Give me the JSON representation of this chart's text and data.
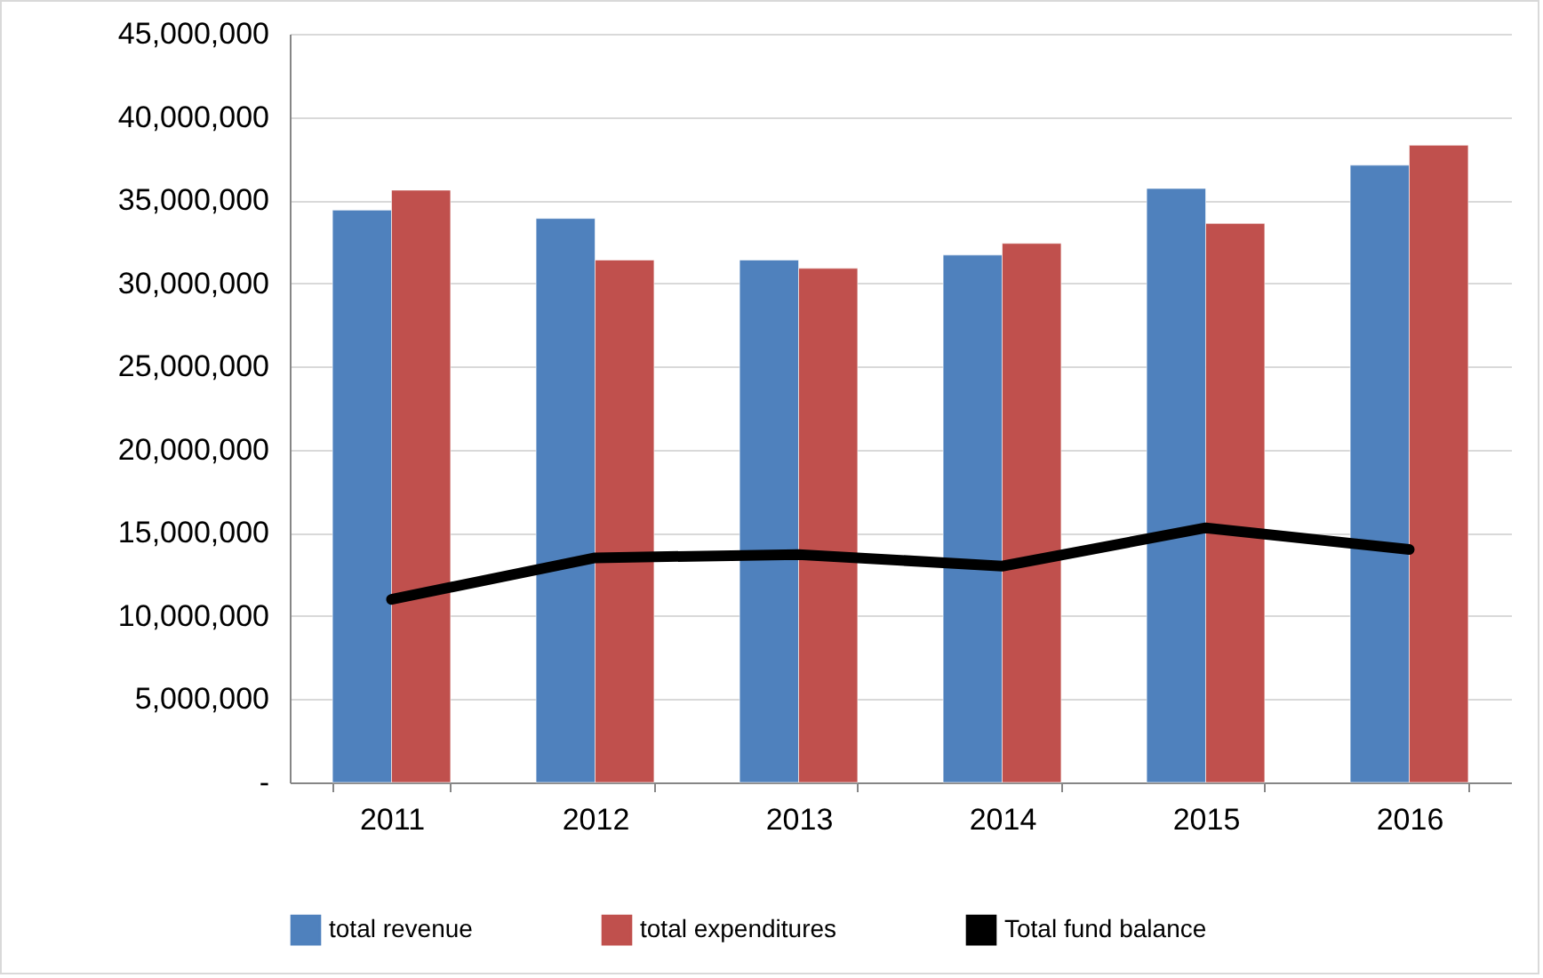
{
  "chart_data": {
    "type": "bar",
    "categories": [
      "2011",
      "2012",
      "2013",
      "2014",
      "2015",
      "2016"
    ],
    "series": [
      {
        "name": "total revenue",
        "color": "#4f81bd",
        "values": [
          34400000,
          33900000,
          31400000,
          31700000,
          35700000,
          37100000
        ]
      },
      {
        "name": "total expenditures",
        "color": "#c0504d",
        "values": [
          35600000,
          31400000,
          30900000,
          32400000,
          33600000,
          38300000
        ]
      },
      {
        "name": "Total fund balance",
        "type": "line",
        "color": "#000000",
        "values": [
          11000000,
          13500000,
          13700000,
          13000000,
          15300000,
          14000000
        ]
      }
    ],
    "ylim": [
      0,
      45000000
    ],
    "yticks": [
      {
        "value": 0,
        "label": "-"
      },
      {
        "value": 5000000,
        "label": "5,000,000"
      },
      {
        "value": 10000000,
        "label": "10,000,000"
      },
      {
        "value": 15000000,
        "label": "15,000,000"
      },
      {
        "value": 20000000,
        "label": "20,000,000"
      },
      {
        "value": 25000000,
        "label": "25,000,000"
      },
      {
        "value": 30000000,
        "label": "30,000,000"
      },
      {
        "value": 35000000,
        "label": "35,000,000"
      },
      {
        "value": 40000000,
        "label": "40,000,000"
      },
      {
        "value": 45000000,
        "label": "45,000,000"
      }
    ],
    "grid": "y",
    "legend": "bottom",
    "marker": "none",
    "line_style": "solid"
  }
}
